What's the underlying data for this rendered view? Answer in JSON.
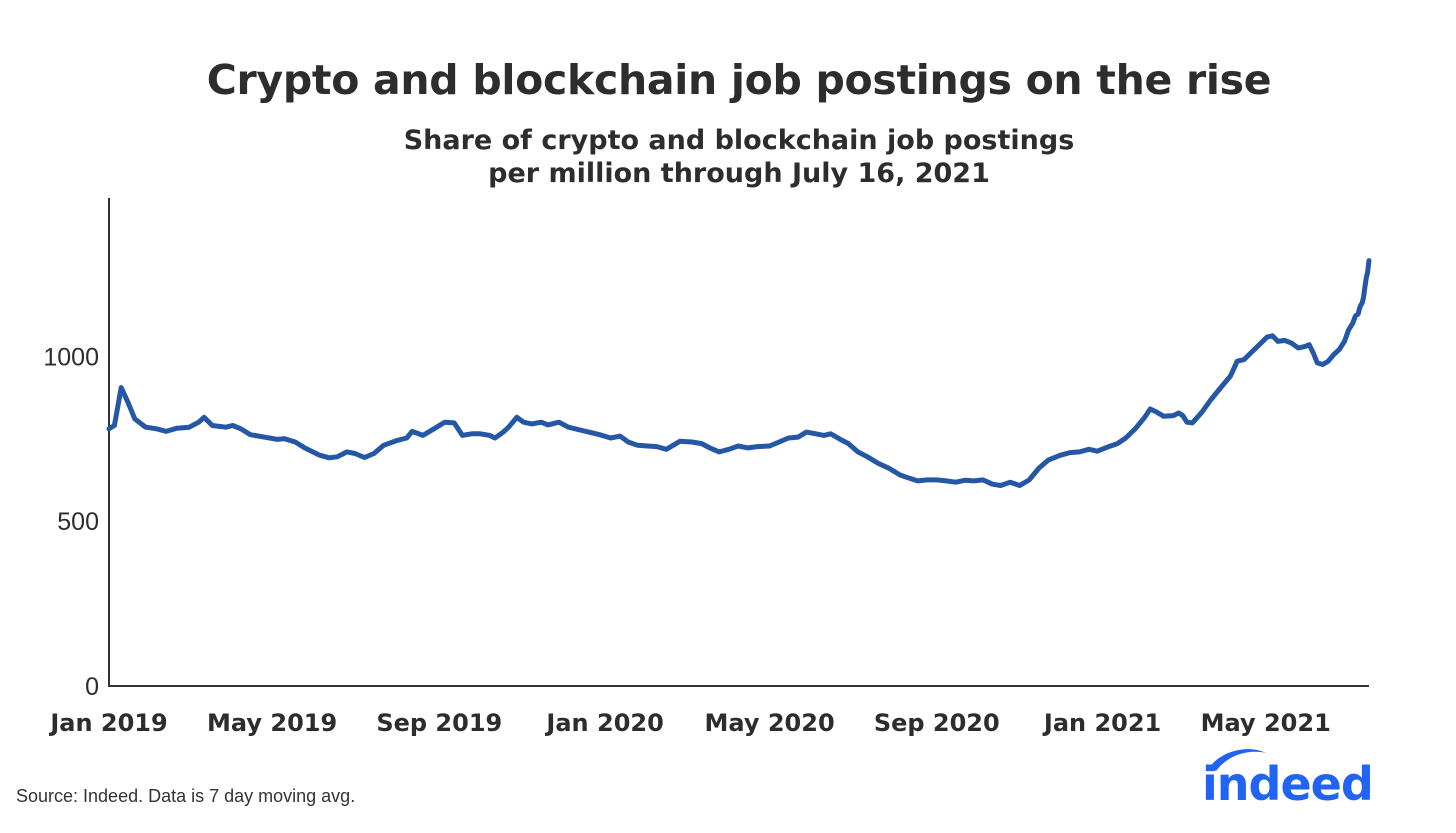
{
  "chart_data": {
    "type": "line",
    "title": "Crypto and blockchain job postings on the rise",
    "subtitle_lines": [
      "Share of crypto and blockchain job postings",
      "per million through July 16, 2021"
    ],
    "xlabel": "",
    "ylabel": "",
    "ylim": [
      0,
      1480
    ],
    "xlim": [
      "2019-01-01",
      "2021-07-16"
    ],
    "y_ticks": [
      0,
      500,
      1000
    ],
    "x_ticks": [
      {
        "date": "2019-01-01",
        "label": "Jan 2019"
      },
      {
        "date": "2019-05-01",
        "label": "May 2019"
      },
      {
        "date": "2019-09-01",
        "label": "Sep 2019"
      },
      {
        "date": "2020-01-01",
        "label": "Jan 2020"
      },
      {
        "date": "2020-05-01",
        "label": "May 2020"
      },
      {
        "date": "2020-09-01",
        "label": "Sep 2020"
      },
      {
        "date": "2021-01-01",
        "label": "Jan 2021"
      },
      {
        "date": "2021-05-01",
        "label": "May 2021"
      }
    ],
    "grid": false,
    "series": [
      {
        "color": "#2557a7",
        "points": [
          [
            "2019-01-01",
            780
          ],
          [
            "2019-01-05",
            790
          ],
          [
            "2019-01-10",
            905
          ],
          [
            "2019-01-15",
            860
          ],
          [
            "2019-01-20",
            810
          ],
          [
            "2019-01-28",
            785
          ],
          [
            "2019-02-05",
            780
          ],
          [
            "2019-02-12",
            772
          ],
          [
            "2019-02-20",
            782
          ],
          [
            "2019-03-01",
            785
          ],
          [
            "2019-03-08",
            800
          ],
          [
            "2019-03-12",
            815
          ],
          [
            "2019-03-18",
            790
          ],
          [
            "2019-03-28",
            785
          ],
          [
            "2019-04-02",
            790
          ],
          [
            "2019-04-08",
            780
          ],
          [
            "2019-04-15",
            762
          ],
          [
            "2019-04-25",
            755
          ],
          [
            "2019-05-05",
            748
          ],
          [
            "2019-05-10",
            750
          ],
          [
            "2019-05-18",
            740
          ],
          [
            "2019-05-25",
            722
          ],
          [
            "2019-06-05",
            700
          ],
          [
            "2019-06-12",
            692
          ],
          [
            "2019-06-18",
            695
          ],
          [
            "2019-06-25",
            710
          ],
          [
            "2019-07-01",
            705
          ],
          [
            "2019-07-08",
            693
          ],
          [
            "2019-07-15",
            705
          ],
          [
            "2019-07-22",
            730
          ],
          [
            "2019-08-01",
            745
          ],
          [
            "2019-08-08",
            752
          ],
          [
            "2019-08-12",
            772
          ],
          [
            "2019-08-20",
            760
          ],
          [
            "2019-08-28",
            780
          ],
          [
            "2019-09-05",
            800
          ],
          [
            "2019-09-12",
            798
          ],
          [
            "2019-09-18",
            760
          ],
          [
            "2019-09-25",
            765
          ],
          [
            "2019-10-01",
            765
          ],
          [
            "2019-10-08",
            760
          ],
          [
            "2019-10-12",
            752
          ],
          [
            "2019-10-18",
            770
          ],
          [
            "2019-10-22",
            785
          ],
          [
            "2019-10-28",
            815
          ],
          [
            "2019-11-02",
            800
          ],
          [
            "2019-11-08",
            795
          ],
          [
            "2019-11-15",
            800
          ],
          [
            "2019-11-20",
            792
          ],
          [
            "2019-11-28",
            800
          ],
          [
            "2019-12-05",
            785
          ],
          [
            "2019-12-12",
            778
          ],
          [
            "2019-12-20",
            770
          ],
          [
            "2019-12-28",
            762
          ],
          [
            "2020-01-05",
            752
          ],
          [
            "2020-01-12",
            758
          ],
          [
            "2020-01-18",
            740
          ],
          [
            "2020-01-25",
            730
          ],
          [
            "2020-02-01",
            728
          ],
          [
            "2020-02-08",
            726
          ],
          [
            "2020-02-15",
            718
          ],
          [
            "2020-02-20",
            730
          ],
          [
            "2020-02-25",
            742
          ],
          [
            "2020-03-05",
            740
          ],
          [
            "2020-03-12",
            735
          ],
          [
            "2020-03-18",
            722
          ],
          [
            "2020-03-25",
            710
          ],
          [
            "2020-04-01",
            718
          ],
          [
            "2020-04-08",
            728
          ],
          [
            "2020-04-15",
            722
          ],
          [
            "2020-04-22",
            726
          ],
          [
            "2020-05-01",
            728
          ],
          [
            "2020-05-08",
            740
          ],
          [
            "2020-05-15",
            752
          ],
          [
            "2020-05-22",
            755
          ],
          [
            "2020-05-28",
            770
          ],
          [
            "2020-06-04",
            765
          ],
          [
            "2020-06-10",
            760
          ],
          [
            "2020-06-15",
            765
          ],
          [
            "2020-06-22",
            748
          ],
          [
            "2020-06-28",
            735
          ],
          [
            "2020-07-05",
            710
          ],
          [
            "2020-07-12",
            695
          ],
          [
            "2020-07-20",
            675
          ],
          [
            "2020-07-28",
            660
          ],
          [
            "2020-08-05",
            640
          ],
          [
            "2020-08-12",
            630
          ],
          [
            "2020-08-18",
            622
          ],
          [
            "2020-08-25",
            625
          ],
          [
            "2020-09-01",
            625
          ],
          [
            "2020-09-08",
            622
          ],
          [
            "2020-09-15",
            618
          ],
          [
            "2020-09-22",
            624
          ],
          [
            "2020-09-28",
            622
          ],
          [
            "2020-10-05",
            625
          ],
          [
            "2020-10-12",
            612
          ],
          [
            "2020-10-18",
            608
          ],
          [
            "2020-10-25",
            618
          ],
          [
            "2020-11-01",
            608
          ],
          [
            "2020-11-08",
            625
          ],
          [
            "2020-11-15",
            660
          ],
          [
            "2020-11-22",
            685
          ],
          [
            "2020-12-01",
            700
          ],
          [
            "2020-12-08",
            708
          ],
          [
            "2020-12-15",
            710
          ],
          [
            "2020-12-22",
            718
          ],
          [
            "2020-12-28",
            712
          ],
          [
            "2021-01-05",
            725
          ],
          [
            "2021-01-12",
            735
          ],
          [
            "2021-01-18",
            752
          ],
          [
            "2021-01-25",
            780
          ],
          [
            "2021-02-01",
            815
          ],
          [
            "2021-02-05",
            840
          ],
          [
            "2021-02-10",
            830
          ],
          [
            "2021-02-15",
            818
          ],
          [
            "2021-02-22",
            820
          ],
          [
            "2021-02-26",
            828
          ],
          [
            "2021-03-01",
            820
          ],
          [
            "2021-03-04",
            800
          ],
          [
            "2021-03-08",
            798
          ],
          [
            "2021-03-15",
            830
          ],
          [
            "2021-03-22",
            870
          ],
          [
            "2021-03-30",
            910
          ],
          [
            "2021-04-05",
            940
          ],
          [
            "2021-04-10",
            985
          ],
          [
            "2021-04-15",
            990
          ],
          [
            "2021-04-20",
            1010
          ],
          [
            "2021-04-25",
            1030
          ],
          [
            "2021-05-02",
            1058
          ],
          [
            "2021-05-06",
            1062
          ],
          [
            "2021-05-10",
            1045
          ],
          [
            "2021-05-15",
            1048
          ],
          [
            "2021-05-20",
            1040
          ],
          [
            "2021-05-25",
            1025
          ],
          [
            "2021-05-30",
            1030
          ],
          [
            "2021-06-02",
            1035
          ],
          [
            "2021-06-05",
            1010
          ],
          [
            "2021-06-08",
            980
          ],
          [
            "2021-06-12",
            975
          ],
          [
            "2021-06-16",
            985
          ],
          [
            "2021-06-20",
            1005
          ],
          [
            "2021-06-24",
            1020
          ],
          [
            "2021-06-28",
            1045
          ],
          [
            "2021-07-01",
            1080
          ],
          [
            "2021-07-04",
            1100
          ],
          [
            "2021-07-06",
            1122
          ],
          [
            "2021-07-08",
            1128
          ],
          [
            "2021-07-09",
            1145
          ],
          [
            "2021-07-10",
            1155
          ],
          [
            "2021-07-11",
            1162
          ],
          [
            "2021-07-12",
            1180
          ],
          [
            "2021-07-13",
            1210
          ],
          [
            "2021-07-14",
            1238
          ],
          [
            "2021-07-15",
            1255
          ],
          [
            "2021-07-16",
            1290
          ]
        ]
      }
    ]
  },
  "footer": {
    "source": "Source: Indeed. Data is 7 day moving avg.",
    "logo_text": "indeed",
    "logo_color": "#2164f3"
  }
}
